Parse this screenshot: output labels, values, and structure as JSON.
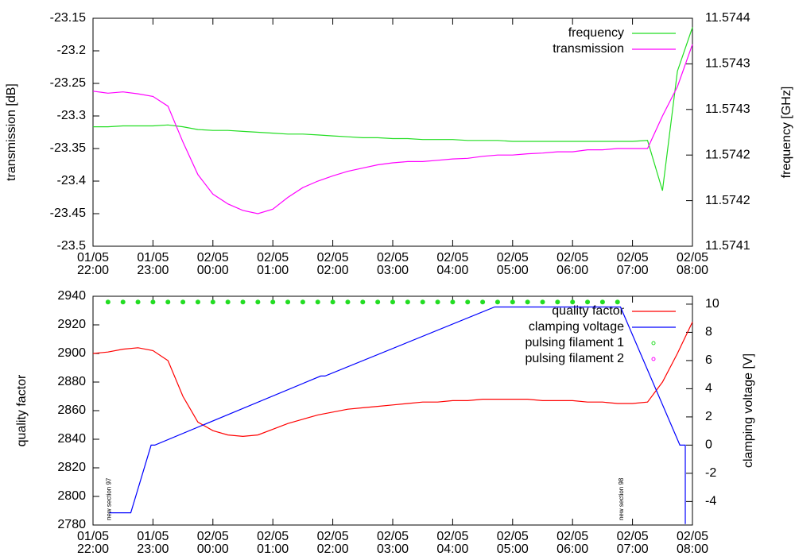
{
  "chart_data": [
    {
      "type": "line",
      "ylabel": "transmission [dB]",
      "y2label": "frequency [GHz]",
      "xlim": [
        0,
        10
      ],
      "xticks": [
        {
          "value": 0,
          "label": "01/05\n22:00"
        },
        {
          "value": 1,
          "label": "01/05\n23:00"
        },
        {
          "value": 2,
          "label": "02/05\n00:00"
        },
        {
          "value": 3,
          "label": "02/05\n01:00"
        },
        {
          "value": 4,
          "label": "02/05\n02:00"
        },
        {
          "value": 5,
          "label": "02/05\n03:00"
        },
        {
          "value": 6,
          "label": "02/05\n04:00"
        },
        {
          "value": 7,
          "label": "02/05\n05:00"
        },
        {
          "value": 8,
          "label": "02/05\n06:00"
        },
        {
          "value": 9,
          "label": "02/05\n07:00"
        },
        {
          "value": 10,
          "label": "02/05\n08:00"
        }
      ],
      "ylim": [
        -23.5,
        -23.15
      ],
      "yticks": [
        -23.5,
        -23.45,
        -23.4,
        -23.35,
        -23.3,
        -23.25,
        -23.2,
        -23.15
      ],
      "y2lim": [
        11.57414,
        11.57439
      ],
      "y2ticks": [
        {
          "value": 11.57414,
          "label": "11.5741"
        },
        {
          "value": 11.57419,
          "label": "11.5742"
        },
        {
          "value": 11.57424,
          "label": "11.5742"
        },
        {
          "value": 11.57429,
          "label": "11.5743"
        },
        {
          "value": 11.57434,
          "label": "11.5743"
        },
        {
          "value": 11.57439,
          "label": "11.5744"
        }
      ],
      "legend": "top-right",
      "series": [
        {
          "name": "frequency",
          "color": "#22dd22",
          "axis": "y2",
          "style": "line",
          "x": [
            0,
            0.25,
            0.5,
            0.75,
            1,
            1.25,
            1.5,
            1.75,
            2,
            2.25,
            2.5,
            2.75,
            3,
            3.25,
            3.5,
            3.75,
            4,
            4.25,
            4.5,
            4.75,
            5,
            5.25,
            5.5,
            5.75,
            6,
            6.25,
            6.5,
            6.75,
            7,
            7.25,
            7.5,
            7.75,
            8,
            8.25,
            8.5,
            8.75,
            9,
            9.25,
            9.5,
            9.75,
            10
          ],
          "values": [
            11.574271,
            11.574271,
            11.574272,
            11.574272,
            11.574272,
            11.574273,
            11.574271,
            11.574268,
            11.574267,
            11.574267,
            11.574266,
            11.574265,
            11.574264,
            11.574263,
            11.574263,
            11.574262,
            11.574261,
            11.57426,
            11.574259,
            11.574259,
            11.574258,
            11.574258,
            11.574257,
            11.574257,
            11.574257,
            11.574256,
            11.574256,
            11.574256,
            11.574255,
            11.574255,
            11.574255,
            11.574255,
            11.574255,
            11.574255,
            11.574255,
            11.574255,
            11.574255,
            11.574256,
            11.574201,
            11.574332,
            11.57438
          ]
        },
        {
          "name": "transmission",
          "color": "#ff00ff",
          "axis": "y",
          "style": "line",
          "x": [
            0,
            0.25,
            0.5,
            0.75,
            1,
            1.25,
            1.5,
            1.75,
            2,
            2.25,
            2.5,
            2.75,
            3,
            3.25,
            3.5,
            3.75,
            4,
            4.25,
            4.5,
            4.75,
            5,
            5.25,
            5.5,
            5.75,
            6,
            6.25,
            6.5,
            6.75,
            7,
            7.25,
            7.5,
            7.75,
            8,
            8.25,
            8.5,
            8.75,
            9,
            9.25,
            9.5,
            9.75,
            10
          ],
          "values": [
            -23.262,
            -23.265,
            -23.263,
            -23.266,
            -23.27,
            -23.285,
            -23.34,
            -23.39,
            -23.42,
            -23.435,
            -23.445,
            -23.45,
            -23.443,
            -23.425,
            -23.41,
            -23.4,
            -23.392,
            -23.385,
            -23.38,
            -23.375,
            -23.372,
            -23.37,
            -23.37,
            -23.368,
            -23.366,
            -23.365,
            -23.362,
            -23.36,
            -23.36,
            -23.358,
            -23.357,
            -23.355,
            -23.355,
            -23.352,
            -23.352,
            -23.35,
            -23.35,
            -23.35,
            -23.3,
            -23.255,
            -23.19
          ]
        }
      ]
    },
    {
      "type": "line",
      "ylabel": "quality factor",
      "y2label": "clamping voltage [V]",
      "xlim": [
        0,
        10
      ],
      "xticks": [
        {
          "value": 0,
          "label": "01/05\n22:00"
        },
        {
          "value": 1,
          "label": "01/05\n23:00"
        },
        {
          "value": 2,
          "label": "02/05\n00:00"
        },
        {
          "value": 3,
          "label": "02/05\n01:00"
        },
        {
          "value": 4,
          "label": "02/05\n02:00"
        },
        {
          "value": 5,
          "label": "02/05\n03:00"
        },
        {
          "value": 6,
          "label": "02/05\n04:00"
        },
        {
          "value": 7,
          "label": "02/05\n05:00"
        },
        {
          "value": 8,
          "label": "02/05\n06:00"
        },
        {
          "value": 9,
          "label": "02/05\n07:00"
        },
        {
          "value": 10,
          "label": "02/05\n08:00"
        }
      ],
      "ylim": [
        2780,
        2940
      ],
      "yticks": [
        2780,
        2800,
        2820,
        2840,
        2860,
        2880,
        2900,
        2920,
        2940
      ],
      "y2lim": [
        -5.67,
        10.56
      ],
      "y2ticks": [
        -4,
        -2,
        0,
        2,
        4,
        6,
        8,
        10
      ],
      "legend": "top-right",
      "annotations": [
        {
          "text": "new section 97",
          "x": 0.27
        },
        {
          "text": "new section 98",
          "x": 8.82
        }
      ],
      "series": [
        {
          "name": "quality factor",
          "color": "#ff0000",
          "axis": "y",
          "style": "line",
          "x": [
            0,
            0.25,
            0.5,
            0.75,
            1,
            1.25,
            1.5,
            1.75,
            2,
            2.25,
            2.5,
            2.75,
            3,
            3.25,
            3.5,
            3.75,
            4,
            4.25,
            4.5,
            4.75,
            5,
            5.25,
            5.5,
            5.75,
            6,
            6.25,
            6.5,
            6.75,
            7,
            7.25,
            7.5,
            7.75,
            8,
            8.25,
            8.5,
            8.75,
            9,
            9.25,
            9.5,
            9.75,
            10
          ],
          "values": [
            2900,
            2901,
            2903,
            2904,
            2902,
            2895,
            2870,
            2852,
            2846,
            2843,
            2842,
            2843,
            2847,
            2851,
            2854,
            2857,
            2859,
            2861,
            2862,
            2863,
            2864,
            2865,
            2866,
            2866,
            2867,
            2867,
            2868,
            2868,
            2868,
            2868,
            2867,
            2867,
            2867,
            2866,
            2866,
            2865,
            2865,
            2866,
            2880,
            2900,
            2922
          ]
        },
        {
          "name": "clamping voltage",
          "color": "#0000ff",
          "axis": "y2",
          "style": "line",
          "x": [
            0.27,
            0.63,
            0.97,
            1.03,
            3.8,
            3.87,
            6.7,
            8.8,
            9.79,
            9.88,
            9.88
          ],
          "values": [
            -4.8,
            -4.8,
            0,
            0,
            4.9,
            4.9,
            9.8,
            9.8,
            0,
            0,
            -5.6
          ]
        },
        {
          "name": "pulsing filament 1",
          "color": "#22dd22",
          "axis": "y",
          "style": "points",
          "x": [
            0.25,
            0.5,
            0.75,
            1,
            1.25,
            1.5,
            1.75,
            2,
            2.25,
            2.5,
            2.75,
            3,
            3.25,
            3.5,
            3.75,
            4,
            4.25,
            4.5,
            4.75,
            5,
            5.25,
            5.5,
            5.75,
            6,
            6.25,
            6.5,
            6.75,
            7,
            7.25,
            7.5,
            7.75,
            8,
            8.25,
            8.5,
            8.75
          ],
          "values": [
            2936,
            2936,
            2936,
            2936,
            2936,
            2936,
            2936,
            2936,
            2936,
            2936,
            2936,
            2936,
            2936,
            2936,
            2936,
            2936,
            2936,
            2936,
            2936,
            2936,
            2936,
            2936,
            2936,
            2936,
            2936,
            2936,
            2936,
            2936,
            2936,
            2936,
            2936,
            2936,
            2936,
            2936,
            2936
          ]
        },
        {
          "name": "pulsing filament 2",
          "color": "#ff00ff",
          "axis": "y",
          "style": "points",
          "x": [],
          "values": []
        }
      ]
    }
  ]
}
